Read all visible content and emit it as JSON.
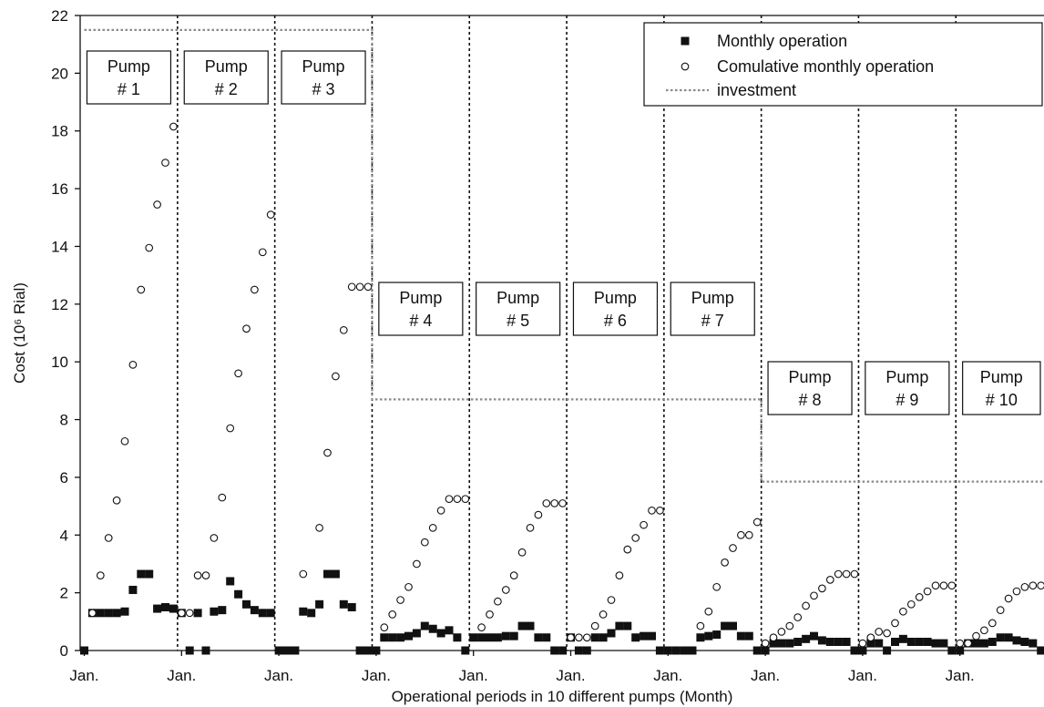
{
  "chart_data": {
    "type": "scatter",
    "xlabel": "Operational periods in 10 different pumps (Month)",
    "ylabel": "Cost (10⁶ Rial)",
    "ylim": [
      0,
      22
    ],
    "yticks": [
      0,
      2,
      4,
      6,
      8,
      10,
      12,
      14,
      16,
      18,
      20,
      22
    ],
    "x_tick_label": "Jan.",
    "x_tick_months": [
      0,
      12,
      24,
      36,
      48,
      60,
      72,
      84,
      96,
      108
    ],
    "xlim": [
      0,
      119
    ],
    "grid": false,
    "legend_position": "top-right",
    "legend": [
      {
        "marker": "filled-square",
        "label": "Monthly operation"
      },
      {
        "marker": "open-circle",
        "label": "Comulative monthly operation"
      },
      {
        "marker": "dotted-line",
        "label": "investment"
      }
    ],
    "pumps": [
      {
        "line1": "Pump",
        "line2": "# 1",
        "investment": 21.5,
        "monthly": [
          0,
          1.3,
          1.3,
          1.3,
          1.3,
          1.35,
          2.1,
          2.65,
          2.65,
          1.45,
          1.5,
          1.45
        ],
        "cumulative": [
          null,
          1.3,
          2.6,
          3.9,
          5.2,
          7.25,
          9.9,
          12.5,
          13.95,
          15.45,
          16.9,
          18.15
        ]
      },
      {
        "line1": "Pump",
        "line2": "# 2",
        "investment": 21.5,
        "monthly": [
          1.3,
          0,
          1.3,
          0,
          1.35,
          1.4,
          2.4,
          1.95,
          1.6,
          1.4,
          1.3,
          1.3
        ],
        "cumulative": [
          1.3,
          1.3,
          2.6,
          2.6,
          3.9,
          5.3,
          7.7,
          9.6,
          11.15,
          12.5,
          13.8,
          15.1
        ]
      },
      {
        "line1": "Pump",
        "line2": "# 3",
        "investment": 21.5,
        "monthly": [
          0,
          0,
          0,
          1.35,
          1.3,
          1.6,
          2.65,
          2.65,
          1.6,
          1.5,
          0,
          0
        ],
        "cumulative": [
          null,
          null,
          null,
          2.65,
          null,
          4.25,
          6.85,
          9.5,
          11.1,
          12.6,
          12.6,
          12.6
        ]
      },
      {
        "line1": "Pump",
        "line2": "# 4",
        "investment": 8.7,
        "monthly": [
          0,
          0.45,
          0.45,
          0.45,
          0.5,
          0.6,
          0.85,
          0.75,
          0.6,
          0.7,
          0.45,
          0
        ],
        "cumulative": [
          null,
          0.8,
          1.25,
          1.75,
          2.2,
          3.0,
          3.75,
          4.25,
          4.85,
          5.25,
          5.25,
          5.25
        ]
      },
      {
        "line1": "Pump",
        "line2": "# 5",
        "investment": 8.7,
        "monthly": [
          0.45,
          0.45,
          0.45,
          0.45,
          0.5,
          0.5,
          0.85,
          0.85,
          0.45,
          0.45,
          0,
          0
        ],
        "cumulative": [
          null,
          0.8,
          1.25,
          1.7,
          2.1,
          2.6,
          3.4,
          4.25,
          4.7,
          5.1,
          5.1,
          5.1
        ]
      },
      {
        "line1": "Pump",
        "line2": "# 6",
        "investment": 8.7,
        "monthly": [
          0.45,
          0,
          0,
          0.45,
          0.45,
          0.6,
          0.85,
          0.85,
          0.45,
          0.5,
          0.5,
          0
        ],
        "cumulative": [
          0.45,
          0.45,
          0.45,
          0.85,
          1.25,
          1.75,
          2.6,
          3.5,
          3.9,
          4.35,
          4.85,
          4.85
        ]
      },
      {
        "line1": "Pump",
        "line2": "# 7",
        "investment": 8.7,
        "monthly": [
          0,
          0,
          0,
          0,
          0.45,
          0.5,
          0.55,
          0.85,
          0.85,
          0.5,
          0.5,
          0
        ],
        "cumulative": [
          null,
          null,
          null,
          null,
          0.85,
          1.35,
          2.2,
          3.05,
          3.55,
          4.0,
          4.0,
          4.45
        ]
      },
      {
        "line1": "Pump",
        "line2": "# 8",
        "investment": 5.85,
        "monthly": [
          0,
          0.25,
          0.25,
          0.25,
          0.3,
          0.4,
          0.5,
          0.35,
          0.3,
          0.3,
          0.3,
          0
        ],
        "cumulative": [
          0.25,
          0.45,
          0.65,
          0.85,
          1.15,
          1.55,
          1.9,
          2.15,
          2.45,
          2.65,
          2.65,
          2.65
        ]
      },
      {
        "line1": "Pump",
        "line2": "# 9",
        "investment": 5.85,
        "monthly": [
          0,
          0.25,
          0.25,
          0,
          0.3,
          0.4,
          0.3,
          0.3,
          0.3,
          0.25,
          0.25,
          0
        ],
        "cumulative": [
          0.25,
          0.45,
          0.65,
          0.6,
          0.95,
          1.35,
          1.6,
          1.85,
          2.05,
          2.25,
          2.25,
          2.25
        ]
      },
      {
        "line1": "Pump",
        "line2": "# 10",
        "investment": 5.85,
        "monthly": [
          0,
          0.25,
          0.25,
          0.25,
          0.3,
          0.45,
          0.45,
          0.35,
          0.3,
          0.25,
          0,
          0
        ],
        "cumulative": [
          0.25,
          0.25,
          0.5,
          0.7,
          0.95,
          1.4,
          1.8,
          2.05,
          2.2,
          2.25,
          2.25,
          2.25
        ]
      }
    ]
  }
}
